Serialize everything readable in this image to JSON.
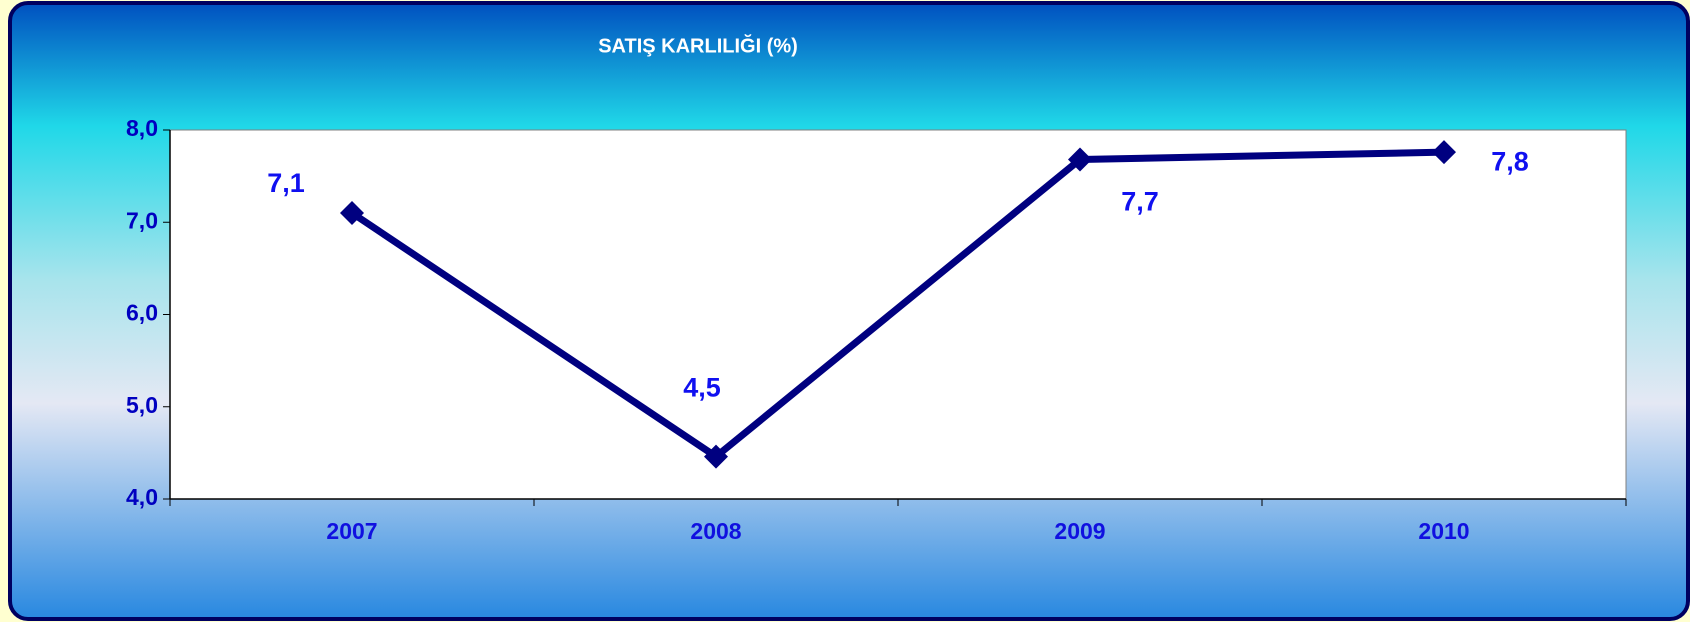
{
  "chart_data": {
    "type": "line",
    "title": "SATIŞ KARLILIĞI (%)",
    "categories": [
      "2007",
      "2008",
      "2009",
      "2010"
    ],
    "series": [
      {
        "name": "SATIŞ KARLILIĞI",
        "color": "#000080",
        "values": [
          7.1,
          4.46,
          7.68,
          7.76
        ],
        "value_labels": [
          "7,1",
          "4,5",
          "7,7",
          "7,8"
        ]
      }
    ],
    "ylim": [
      4,
      8
    ],
    "yticks": [
      {
        "value": 4,
        "label": "4,0"
      },
      {
        "value": 5,
        "label": "5,0"
      },
      {
        "value": 6,
        "label": "6,0"
      },
      {
        "value": 7,
        "label": "7,0"
      },
      {
        "value": 8,
        "label": "8,0"
      }
    ],
    "grid": false
  }
}
